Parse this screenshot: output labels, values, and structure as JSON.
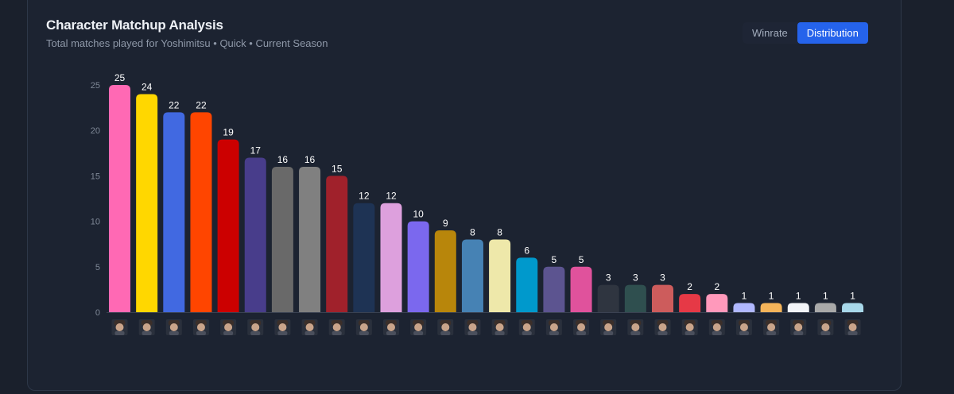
{
  "header": {
    "title": "Character Matchup Analysis",
    "subtitle": "Total matches played for Yoshimitsu • Quick • Current Season"
  },
  "toggle": {
    "options": [
      "Winrate",
      "Distribution"
    ],
    "active": "Distribution"
  },
  "colors": {
    "background": "#1a202c",
    "accent": "#2563eb"
  },
  "chart_data": {
    "type": "bar",
    "title": "",
    "xlabel": "",
    "ylabel": "",
    "ylim": [
      0,
      25
    ],
    "yticks": [
      0,
      5,
      10,
      15,
      20,
      25
    ],
    "grid": false,
    "values": [
      25,
      24,
      22,
      22,
      19,
      17,
      16,
      16,
      15,
      12,
      12,
      10,
      9,
      8,
      8,
      6,
      5,
      5,
      3,
      3,
      3,
      2,
      2,
      1,
      1,
      1,
      1,
      1
    ],
    "bar_colors": [
      "#ff69b4",
      "#ffd700",
      "#4169e1",
      "#ff4500",
      "#cc0000",
      "#483d8b",
      "#696969",
      "#808080",
      "#a0212b",
      "#1e3354",
      "#dda0dd",
      "#7b68ee",
      "#b8860b",
      "#4682b4",
      "#eee8aa",
      "#0099cc",
      "#5c5490",
      "#e0529c",
      "#2f3540",
      "#2f4f4f",
      "#cd5c5c",
      "#e63946",
      "#ff99bb",
      "#b0b8ff",
      "#f4b45a",
      "#f2f4f8",
      "#a9a9a9",
      "#a8d8ea"
    ],
    "x_icons": "character-portrait-icon"
  }
}
